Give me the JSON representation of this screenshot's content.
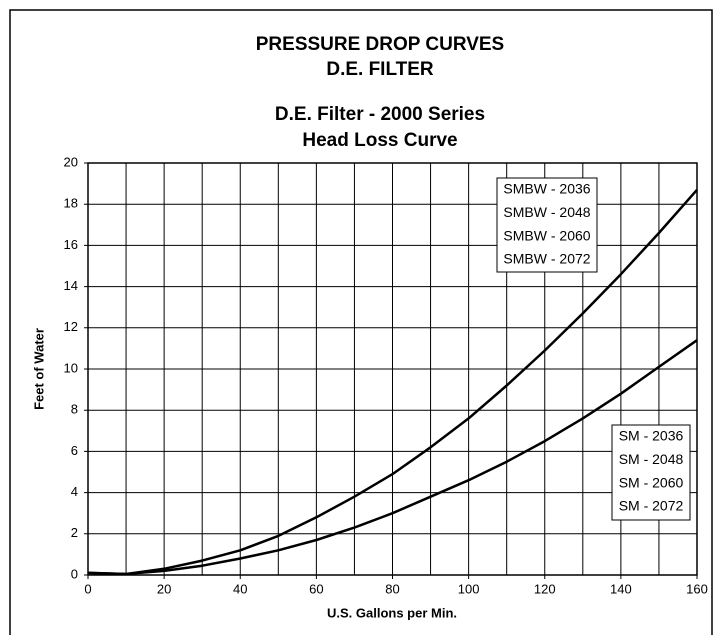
{
  "chart_data": {
    "type": "line",
    "title": [
      "PRESSURE DROP CURVES",
      "D.E. FILTER"
    ],
    "subtitle": [
      "D.E. Filter - 2000 Series",
      "Head Loss Curve"
    ],
    "x_label": "U.S. Gallons per Min.",
    "y_label": "Feet of Water",
    "x": [
      0,
      10,
      20,
      30,
      40,
      50,
      60,
      70,
      80,
      90,
      100,
      110,
      120,
      130,
      140,
      150,
      160
    ],
    "series": [
      {
        "labels": [
          "SMBW - 2036",
          "SMBW - 2048",
          "SMBW - 2060",
          "SMBW - 2072"
        ],
        "color": "#000000",
        "values": [
          0.1,
          0.05,
          0.3,
          0.7,
          1.2,
          1.9,
          2.8,
          3.8,
          4.9,
          6.2,
          7.6,
          9.2,
          10.9,
          12.7,
          14.6,
          16.6,
          18.7
        ]
      },
      {
        "labels": [
          "SM - 2036",
          "SM - 2048",
          "SM - 2060",
          "SM - 2072"
        ],
        "color": "#000000",
        "values": [
          0.1,
          0.05,
          0.2,
          0.45,
          0.8,
          1.2,
          1.7,
          2.3,
          3.0,
          3.8,
          4.6,
          5.5,
          6.5,
          7.6,
          8.8,
          10.1,
          11.4
        ]
      }
    ],
    "xlim": [
      0,
      160
    ],
    "xticks": [
      0,
      20,
      40,
      60,
      80,
      100,
      120,
      140,
      160
    ],
    "x_minor_grid": [
      10,
      30,
      50,
      70,
      90,
      110,
      130,
      150
    ],
    "ylim": [
      0,
      20
    ],
    "yticks": [
      0,
      2,
      4,
      6,
      8,
      10,
      12,
      14,
      16,
      18,
      20
    ],
    "grid": true
  }
}
